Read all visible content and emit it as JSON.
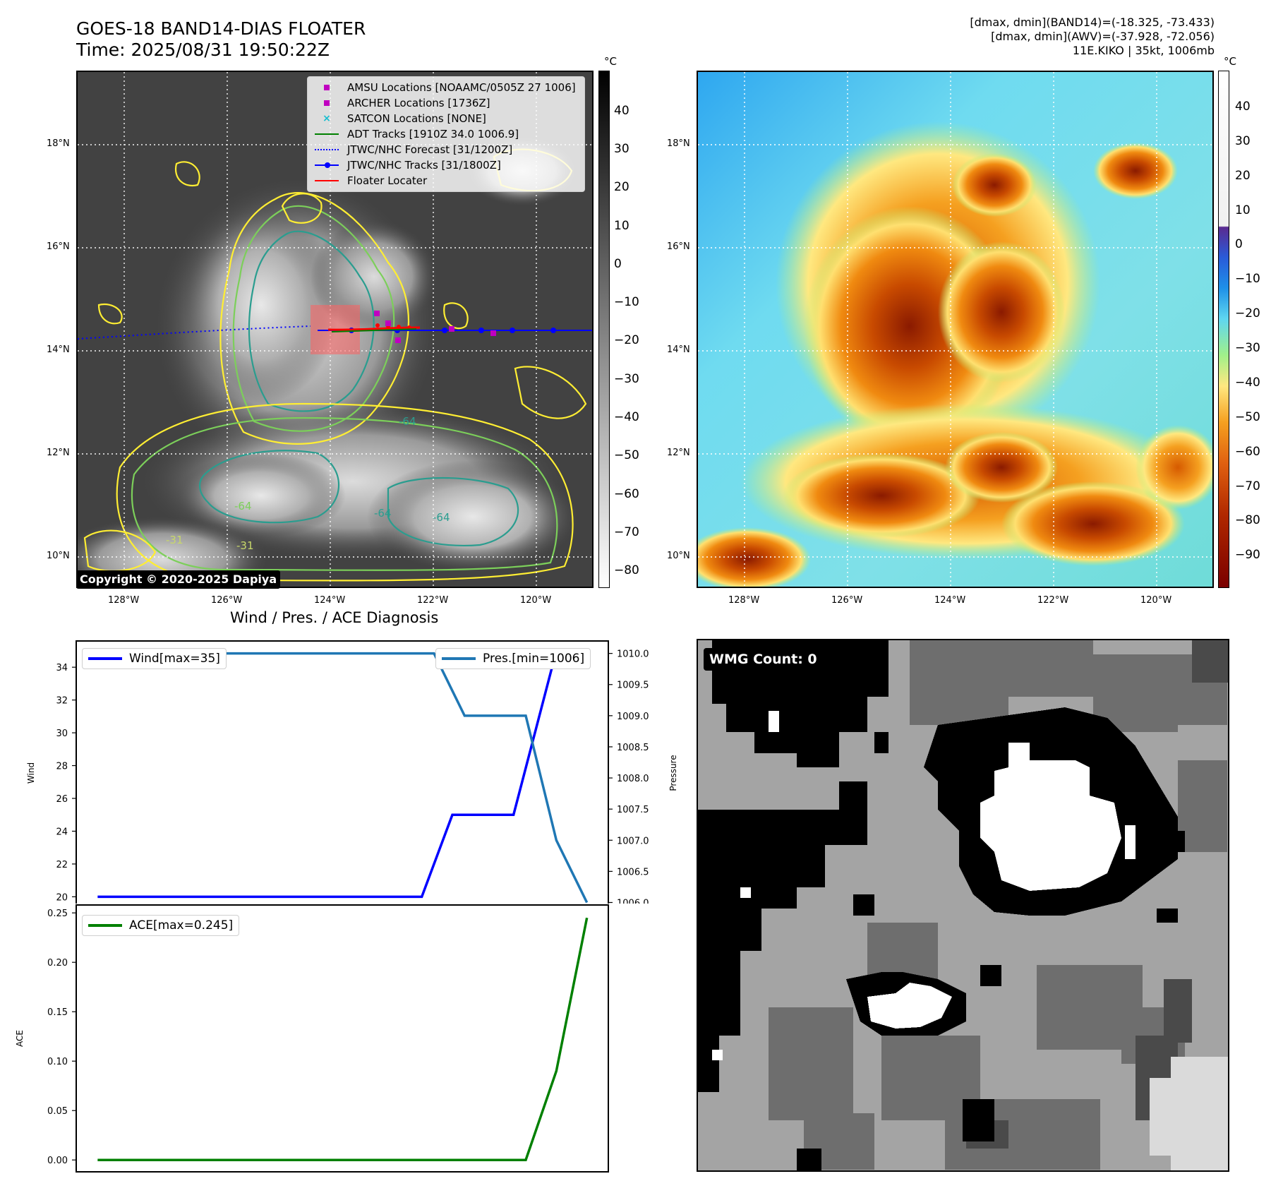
{
  "figure": {
    "title_line1": "GOES-18 BAND14-DIAS FLOATER",
    "title_line2": "Time: 2025/08/31 19:50:22Z",
    "stats_line1": "[dmax, dmin](BAND14)=(-18.325, -73.433)",
    "stats_line2": "[dmax, dmin](AWV)=(-37.928, -72.056)",
    "stats_line3": "11E.KIKO | 35kt, 1006mb",
    "copyright": "Copyright © 2020-2025 Dapiya",
    "wmg_label": "WMG Count: 0",
    "diagnosis_title": "Wind / Pres. / ACE Diagnosis"
  },
  "map": {
    "lat_labels": [
      "18°N",
      "16°N",
      "14°N",
      "12°N",
      "10°N"
    ],
    "lon_labels": [
      "128°W",
      "126°W",
      "124°W",
      "122°W",
      "120°W"
    ],
    "unit": "°C",
    "legend": [
      {
        "label": "AMSU Locations [NOAAMC/0505Z 27 1006]",
        "color": "#c000c0",
        "icon": "square-marker"
      },
      {
        "label": "ARCHER Locations [1736Z]",
        "color": "#c000c0",
        "icon": "square-marker"
      },
      {
        "label": "SATCON Locations [NONE]",
        "color": "#17becf",
        "icon": "x-marker"
      },
      {
        "label": "ADT Tracks [1910Z 34.0 1006.9]",
        "color": "#008000",
        "icon": "solid-line"
      },
      {
        "label": "JTWC/NHC Forecast [31/1200Z]",
        "color": "#0000ff",
        "icon": "dotted-line"
      },
      {
        "label": "JTWC/NHC Tracks [31/1800Z]",
        "color": "#0000ff",
        "icon": "line-with-dot"
      },
      {
        "label": "Floater Locater",
        "color": "#ff0000",
        "icon": "solid-line"
      }
    ],
    "contour_labels": [
      "-64",
      "-64",
      "-31",
      "-64",
      "-31",
      "-64"
    ]
  },
  "colorbar_left": {
    "ticks": [
      "40",
      "30",
      "20",
      "10",
      "0",
      "−10",
      "−20",
      "−30",
      "−40",
      "−50",
      "−60",
      "−70",
      "−80"
    ]
  },
  "colorbar_right": {
    "ticks": [
      "40",
      "30",
      "20",
      "10",
      "0",
      "−10",
      "−20",
      "−30",
      "−40",
      "−50",
      "−60",
      "−70",
      "−80",
      "−90"
    ]
  },
  "colors": {
    "wind": "#0000ff",
    "pressure": "#1f77b4",
    "ace": "#008000",
    "contour_yellow": "#ffee33",
    "contour_green": "#7ccf5a",
    "contour_teal": "#2a9d8f"
  },
  "chart_data": [
    {
      "type": "line",
      "title": "Wind / Pres. / ACE Diagnosis",
      "ylabel": "Wind",
      "y2label": "Pressure",
      "x": [
        0,
        1,
        2,
        3,
        4,
        5,
        6,
        7,
        8
      ],
      "ylim": [
        19.5,
        35.6
      ],
      "y2lim": [
        1005.96,
        1010.2
      ],
      "yticks": [
        "20",
        "22",
        "24",
        "26",
        "28",
        "30",
        "32",
        "34"
      ],
      "y2ticks": [
        "1006.0",
        "1006.5",
        "1007.0",
        "1007.5",
        "1008.0",
        "1008.5",
        "1009.0",
        "1009.5",
        "1010.0"
      ],
      "series": [
        {
          "name": "Wind[max=35]",
          "axis": "left",
          "x": [
            0,
            5.3,
            5.8,
            6.8,
            7.5
          ],
          "values": [
            20,
            20,
            25,
            25,
            35
          ]
        },
        {
          "name": "Pres.[min=1006]",
          "axis": "right",
          "x": [
            0,
            5.5,
            6.0,
            7.0,
            7.5,
            8.0
          ],
          "values": [
            1010,
            1010,
            1009,
            1009,
            1007,
            1006
          ]
        }
      ]
    },
    {
      "type": "line",
      "ylabel": "ACE",
      "ylim": [
        -0.012,
        0.258
      ],
      "yticks": [
        "0.00",
        "0.05",
        "0.10",
        "0.15",
        "0.20",
        "0.25"
      ],
      "series": [
        {
          "name": "ACE[max=0.245]",
          "x": [
            0,
            7.0,
            7.5,
            8.0
          ],
          "values": [
            0,
            0,
            0.09,
            0.245
          ]
        }
      ]
    }
  ]
}
